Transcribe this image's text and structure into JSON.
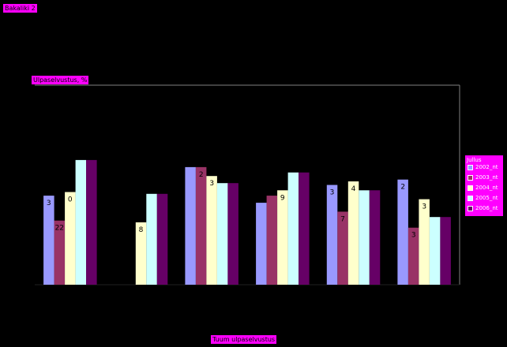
{
  "tags": {
    "top_left": "Bakaliki 2",
    "y_axis_label": "Ulpaselvustus, %",
    "x_axis_label": "Tuum ulpaselvustus"
  },
  "legend": {
    "title": "Jullus",
    "items": [
      "2002_nt",
      "2003_nt",
      "2004_nt",
      "2005_nt",
      "2006_nt"
    ]
  },
  "colors": {
    "series": [
      "#9999ff",
      "#993366",
      "#ffffcc",
      "#ccffff",
      "#660066"
    ],
    "accent": "#ff00ff",
    "background": "#000000",
    "axis": "#808080"
  },
  "chart_data": {
    "type": "bar",
    "title": "",
    "xlabel": "Tuum ulpaselvustus",
    "ylabel": "Ulpaselvustus, %",
    "grid": false,
    "legend_position": "right",
    "ylim": [
      0,
      56
    ],
    "categories": [
      "",
      "",
      "",
      "",
      "",
      ""
    ],
    "series": [
      {
        "name": "2002_nt",
        "values": [
          25,
          null,
          33,
          23,
          28,
          29.5
        ]
      },
      {
        "name": "2003_nt",
        "values": [
          18,
          null,
          33,
          25,
          20.5,
          16
        ]
      },
      {
        "name": "2004_nt",
        "values": [
          26,
          17.5,
          30.5,
          26.5,
          29,
          24
        ]
      },
      {
        "name": "2005_nt",
        "values": [
          35,
          25.5,
          28.5,
          31.5,
          26.5,
          19
        ]
      },
      {
        "name": "2006_nt",
        "values": [
          35,
          25.5,
          28.5,
          31.5,
          26.5,
          19
        ]
      }
    ],
    "data_labels": [
      {
        "text": "3",
        "category": 0,
        "series": 0
      },
      {
        "text": "22",
        "category": 0,
        "series": 1
      },
      {
        "text": "0",
        "category": 0,
        "series": 2
      },
      {
        "text": "8",
        "category": 1,
        "series": 2
      },
      {
        "text": "2",
        "category": 2,
        "series": 1
      },
      {
        "text": "3",
        "category": 2,
        "series": 2
      },
      {
        "text": "9",
        "category": 3,
        "series": 2
      },
      {
        "text": "3",
        "category": 4,
        "series": 0
      },
      {
        "text": "7",
        "category": 4,
        "series": 1
      },
      {
        "text": "4",
        "category": 4,
        "series": 2
      },
      {
        "text": "2",
        "category": 5,
        "series": 0
      },
      {
        "text": "3",
        "category": 5,
        "series": 1
      },
      {
        "text": "3",
        "category": 5,
        "series": 2
      }
    ]
  }
}
